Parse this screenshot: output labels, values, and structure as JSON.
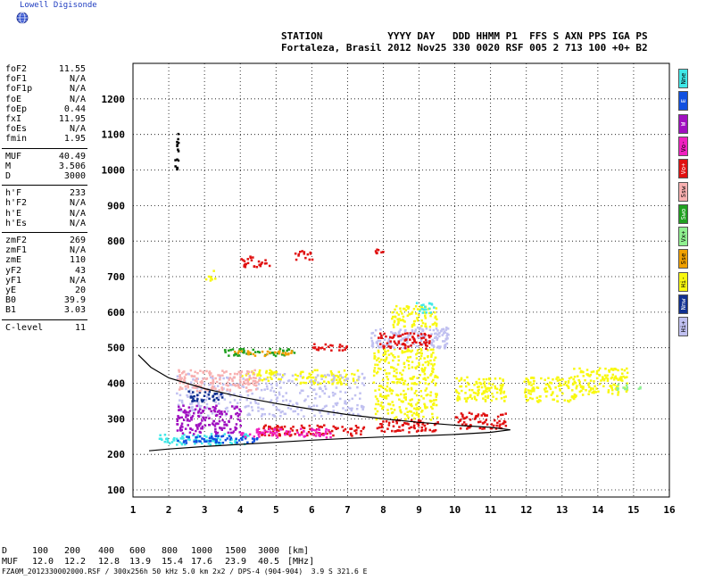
{
  "header": {
    "brand": "Lowell Digisonde",
    "line1": "STATION           YYYY DAY   DDD HHMM P1  FFS S AXN PPS IGA PS",
    "line2": "Fortaleza, Brasil 2012 Nov25 330 0020 RSF 005 2 713 100 +0+ B2",
    "logo_icon": "globe-icon"
  },
  "params_group1": [
    {
      "label": "foF2",
      "value": "11.55"
    },
    {
      "label": "foF1",
      "value": "N/A"
    },
    {
      "label": "foF1p",
      "value": "N/A"
    },
    {
      "label": "foE",
      "value": "N/A"
    },
    {
      "label": "foEp",
      "value": "0.44"
    },
    {
      "label": "fxI",
      "value": "11.95"
    },
    {
      "label": "foEs",
      "value": "N/A"
    },
    {
      "label": "fmin",
      "value": "1.95"
    }
  ],
  "params_group2": [
    {
      "label": "MUF",
      "value": "40.49"
    },
    {
      "label": "M",
      "value": "3.506"
    },
    {
      "label": "D",
      "value": "3000"
    }
  ],
  "params_group3": [
    {
      "label": "h'F",
      "value": "233"
    },
    {
      "label": "h'F2",
      "value": "N/A"
    },
    {
      "label": "h'E",
      "value": "N/A"
    },
    {
      "label": "h'Es",
      "value": "N/A"
    }
  ],
  "params_group4": [
    {
      "label": "zmF2",
      "value": "269"
    },
    {
      "label": "zmF1",
      "value": "N/A"
    },
    {
      "label": "zmE",
      "value": "110"
    },
    {
      "label": "yF2",
      "value": "43"
    },
    {
      "label": "yF1",
      "value": "N/A"
    },
    {
      "label": "yE",
      "value": "20"
    },
    {
      "label": "B0",
      "value": "39.9"
    },
    {
      "label": "B1",
      "value": "3.03"
    }
  ],
  "params_group5": [
    {
      "label": "C-level",
      "value": "11"
    }
  ],
  "legend": [
    {
      "label": "Nne",
      "color": "#40e8e8"
    },
    {
      "label": "E",
      "color": "#1050e0"
    },
    {
      "label": "W",
      "color": "#a010c0"
    },
    {
      "label": "Vo-",
      "color": "#f020c0"
    },
    {
      "label": "Vo+",
      "color": "#e01010"
    },
    {
      "label": "Ssw",
      "color": "#f8b0b0"
    },
    {
      "label": "Swo",
      "color": "#20a020"
    },
    {
      "label": "Vx+",
      "color": "#90f090"
    },
    {
      "label": "Sse",
      "color": "#f0a000"
    },
    {
      "label": "Hi-",
      "color": "#f8f810"
    },
    {
      "label": "Nnw",
      "color": "#103090"
    },
    {
      "label": "Hi+",
      "color": "#c0c0f0"
    }
  ],
  "muf_table": {
    "d_label": "D",
    "d_values": [
      "100",
      "200",
      "400",
      "600",
      "800",
      "1000",
      "1500",
      "3000"
    ],
    "d_unit": "[km]",
    "muf_label": "MUF",
    "muf_values": [
      "12.0",
      "12.2",
      "12.8",
      "13.9",
      "15.4",
      "17.6",
      "23.9",
      "40.5"
    ],
    "muf_unit": "[MHz]"
  },
  "footer": "FZA0M_2012330002000.RSF / 300x256h 50 kHz 5.0 km 2x2 / DPS-4 (904-904)  3.9 S 321.6 E",
  "chart_data": {
    "type": "scatter",
    "xlim": [
      1,
      16
    ],
    "ylim": [
      80,
      1300
    ],
    "x_ticks": [
      1,
      2,
      3,
      4,
      5,
      6,
      7,
      8,
      9,
      10,
      11,
      12,
      13,
      14,
      15,
      16
    ],
    "y_ticks": [
      100,
      200,
      300,
      400,
      500,
      600,
      700,
      800,
      900,
      1000,
      1100,
      1200
    ],
    "grid": true,
    "legend_position": "right",
    "profile_upper": [
      [
        1.15,
        480
      ],
      [
        1.5,
        445
      ],
      [
        2,
        415
      ],
      [
        3,
        385
      ],
      [
        4,
        362
      ],
      [
        5,
        343
      ],
      [
        6,
        327
      ],
      [
        7,
        312
      ],
      [
        8,
        300
      ],
      [
        9,
        290
      ],
      [
        10,
        282
      ],
      [
        11,
        276
      ],
      [
        11.55,
        269
      ]
    ],
    "profile_lower": [
      [
        1.45,
        210
      ],
      [
        2,
        215
      ],
      [
        3,
        222
      ],
      [
        4,
        228
      ],
      [
        5,
        234
      ],
      [
        6,
        240
      ],
      [
        7,
        245
      ],
      [
        8,
        249
      ],
      [
        9,
        252
      ],
      [
        10,
        256
      ],
      [
        11,
        262
      ],
      [
        11.55,
        269
      ]
    ],
    "echo_clusters": [
      {
        "color": "#f8f810",
        "x": [
          4.0,
          5.2
        ],
        "y": [
          410,
          440
        ]
      },
      {
        "color": "#f8f810",
        "x": [
          5.5,
          7.3
        ],
        "y": [
          400,
          440
        ]
      },
      {
        "color": "#f8f810",
        "x": [
          7.7,
          9.5
        ],
        "y": [
          300,
          500
        ]
      },
      {
        "color": "#f8f810",
        "x": [
          10.0,
          11.4
        ],
        "y": [
          350,
          420
        ]
      },
      {
        "color": "#f8f810",
        "x": [
          11.9,
          13.4
        ],
        "y": [
          350,
          420
        ]
      },
      {
        "color": "#f8f810",
        "x": [
          13.3,
          14.8
        ],
        "y": [
          370,
          445
        ]
      },
      {
        "color": "#f8f810",
        "x": [
          8.2,
          9.5
        ],
        "y": [
          560,
          620
        ]
      },
      {
        "color": "#c0c0f0",
        "x": [
          2.2,
          7.5
        ],
        "y": [
          310,
          430
        ]
      },
      {
        "color": "#c0c0f0",
        "x": [
          7.6,
          9.8
        ],
        "y": [
          500,
          560
        ]
      },
      {
        "color": "#40e8e8",
        "x": [
          1.7,
          4.2
        ],
        "y": [
          230,
          260
        ]
      },
      {
        "color": "#1050e0",
        "x": [
          2.0,
          4.5
        ],
        "y": [
          235,
          255
        ]
      },
      {
        "color": "#e01010",
        "x": [
          4.5,
          7.5
        ],
        "y": [
          255,
          285
        ]
      },
      {
        "color": "#e01010",
        "x": [
          7.8,
          9.5
        ],
        "y": [
          265,
          300
        ]
      },
      {
        "color": "#e01010",
        "x": [
          10.0,
          11.4
        ],
        "y": [
          275,
          320
        ]
      },
      {
        "color": "#e01010",
        "x": [
          7.8,
          9.3
        ],
        "y": [
          500,
          545
        ]
      },
      {
        "color": "#e01010",
        "x": [
          6.0,
          7.0
        ],
        "y": [
          495,
          515
        ]
      },
      {
        "color": "#a010c0",
        "x": [
          2.2,
          4.0
        ],
        "y": [
          260,
          340
        ]
      },
      {
        "color": "#20a020",
        "x": [
          3.5,
          5.5
        ],
        "y": [
          480,
          500
        ]
      },
      {
        "color": "#f0a000",
        "x": [
          3.8,
          5.5
        ],
        "y": [
          480,
          495
        ]
      },
      {
        "color": "#f020c0",
        "x": [
          4.0,
          6.5
        ],
        "y": [
          250,
          275
        ]
      },
      {
        "color": "#103090",
        "x": [
          2.5,
          3.5
        ],
        "y": [
          350,
          380
        ]
      },
      {
        "color": "#f8b0b0",
        "x": [
          2.2,
          4.5
        ],
        "y": [
          380,
          440
        ]
      },
      {
        "color": "#f8f810",
        "x": [
          3.0,
          3.3
        ],
        "y": [
          690,
          720
        ]
      },
      {
        "color": "#e01010",
        "x": [
          4.0,
          4.8
        ],
        "y": [
          730,
          760
        ]
      },
      {
        "color": "#e01010",
        "x": [
          5.5,
          6.0
        ],
        "y": [
          750,
          775
        ]
      },
      {
        "color": "#e01010",
        "x": [
          7.7,
          8.0
        ],
        "y": [
          760,
          780
        ]
      },
      {
        "color": "#40e8e8",
        "x": [
          8.9,
          9.4
        ],
        "y": [
          600,
          630
        ]
      },
      {
        "color": "#000000",
        "x": [
          2.15,
          2.25
        ],
        "y": [
          1000,
          1130
        ]
      },
      {
        "color": "#90f090",
        "x": [
          14.5,
          15.2
        ],
        "y": [
          385,
          400
        ]
      }
    ]
  }
}
